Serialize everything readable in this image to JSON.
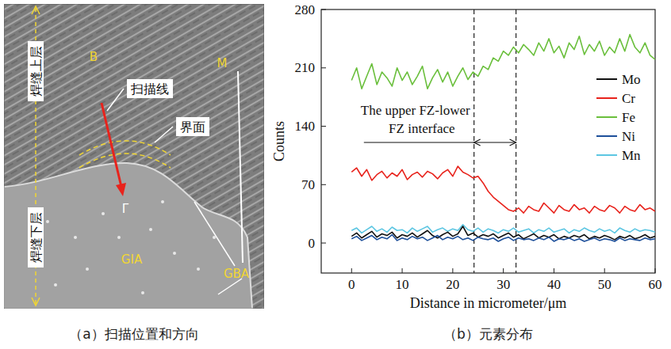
{
  "panel_a": {
    "caption": "（a）扫描位置和方向",
    "upper_layer": "焊缝上层",
    "lower_layer": "焊缝下层",
    "scan_line": "扫描线",
    "interface": "界面",
    "phases": [
      "B",
      "M",
      "Γ",
      "GIA",
      "GBA"
    ]
  },
  "chart_data": {
    "type": "line",
    "title": "（b）元素分布",
    "x_label": "Distance in micrometer/μm",
    "y_label": "Counts",
    "xlim": [
      -6,
      60
    ],
    "xticks": [
      0,
      10,
      20,
      30,
      40,
      50,
      60
    ],
    "ylim": [
      -36,
      280
    ],
    "yticks": [
      0,
      70,
      140,
      210,
      280
    ],
    "grid": false,
    "legend": "right",
    "annotations": [
      {
        "text": "The upper FZ-lower FZ interface",
        "x": [
          24.2,
          32.5
        ]
      }
    ],
    "x": [
      0,
      1,
      2,
      3,
      4,
      5,
      6,
      7,
      8,
      9,
      10,
      11,
      12,
      13,
      14,
      15,
      16,
      17,
      18,
      19,
      20,
      21,
      22,
      23,
      24,
      25,
      26,
      27,
      28,
      29,
      30,
      31,
      32,
      33,
      34,
      35,
      36,
      37,
      38,
      39,
      40,
      41,
      42,
      43,
      44,
      45,
      46,
      47,
      48,
      49,
      50,
      51,
      52,
      53,
      54,
      55,
      56,
      57,
      58,
      59,
      60
    ],
    "series": [
      {
        "name": "Mo",
        "color": "#111111",
        "values": [
          8,
          12,
          6,
          10,
          14,
          7,
          11,
          9,
          13,
          6,
          10,
          8,
          12,
          7,
          11,
          15,
          9,
          6,
          10,
          13,
          8,
          11,
          20,
          9,
          12,
          7,
          10,
          8,
          11,
          6,
          9,
          12,
          7,
          10,
          5,
          8,
          11,
          6,
          9,
          7,
          10,
          5,
          8,
          6,
          9,
          7,
          10,
          5,
          8,
          6,
          9,
          7,
          4,
          8,
          6,
          9,
          5,
          7,
          10,
          6,
          8
        ]
      },
      {
        "name": "Cr",
        "color": "#e8231c",
        "values": [
          85,
          90,
          80,
          88,
          75,
          82,
          86,
          78,
          84,
          80,
          88,
          76,
          82,
          85,
          79,
          86,
          83,
          77,
          84,
          88,
          80,
          92,
          85,
          82,
          78,
          80,
          72,
          62,
          55,
          50,
          45,
          40,
          38,
          42,
          36,
          44,
          40,
          38,
          48,
          42,
          36,
          45,
          40,
          38,
          46,
          40,
          42,
          36,
          44,
          40,
          38,
          45,
          42,
          36,
          44,
          40,
          38,
          46,
          40,
          42,
          38
        ]
      },
      {
        "name": "Fe",
        "color": "#6abf3c",
        "values": [
          195,
          210,
          185,
          200,
          215,
          190,
          205,
          198,
          188,
          210,
          195,
          205,
          190,
          200,
          212,
          185,
          198,
          208,
          193,
          205,
          188,
          200,
          210,
          196,
          205,
          200,
          212,
          208,
          222,
          218,
          230,
          225,
          235,
          228,
          238,
          232,
          225,
          240,
          230,
          245,
          228,
          236,
          222,
          240,
          232,
          248,
          226,
          238,
          230,
          242,
          225,
          235,
          228,
          245,
          230,
          250,
          235,
          228,
          240,
          225,
          220
        ]
      },
      {
        "name": "Ni",
        "color": "#1d4f9a",
        "values": [
          5,
          8,
          3,
          6,
          9,
          4,
          7,
          5,
          10,
          3,
          6,
          4,
          8,
          5,
          7,
          3,
          6,
          9,
          4,
          7,
          5,
          8,
          4,
          6,
          3,
          7,
          5,
          4,
          6,
          2,
          5,
          7,
          3,
          6,
          4,
          5,
          3,
          6,
          4,
          7,
          2,
          5,
          4,
          6,
          3,
          5,
          2,
          4,
          6,
          3,
          5,
          4,
          2,
          6,
          3,
          5,
          4,
          3,
          6,
          4,
          5
        ]
      },
      {
        "name": "Mn",
        "color": "#5cc6e2",
        "values": [
          15,
          18,
          12,
          16,
          20,
          14,
          17,
          13,
          19,
          15,
          16,
          12,
          18,
          14,
          17,
          20,
          13,
          16,
          18,
          14,
          17,
          15,
          22,
          16,
          14,
          18,
          13,
          17,
          15,
          12,
          16,
          14,
          18,
          13,
          15,
          17,
          12,
          16,
          14,
          18,
          13,
          15,
          17,
          12,
          16,
          14,
          18,
          15,
          13,
          17,
          14,
          16,
          12,
          18,
          15,
          13,
          17,
          14,
          16,
          15,
          13
        ]
      }
    ]
  }
}
